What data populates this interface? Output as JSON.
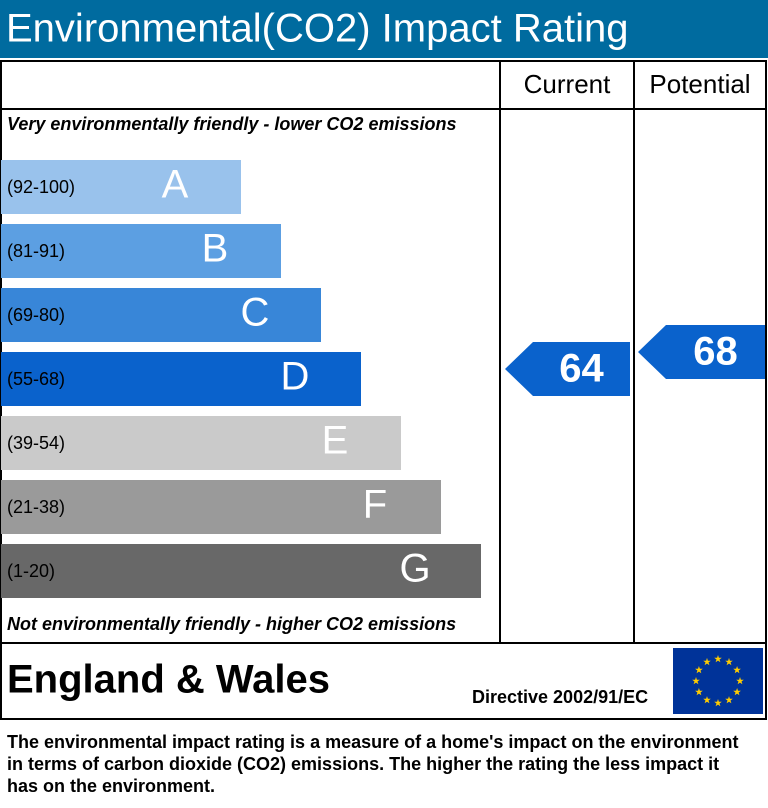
{
  "header": {
    "title": "Environmental(CO2) Impact Rating"
  },
  "columns": {
    "current": "Current",
    "potential": "Potential"
  },
  "top_note": "Very environmentally friendly - lower CO2 emissions",
  "bottom_note": "Not environmentally friendly - higher CO2 emissions",
  "bands": [
    {
      "range": "(92-100)",
      "letter": "A",
      "color": "#99c2ec"
    },
    {
      "range": "(81-91)",
      "letter": "B",
      "color": "#5c9fe2"
    },
    {
      "range": "(69-80)",
      "letter": "C",
      "color": "#3886d8"
    },
    {
      "range": "(55-68)",
      "letter": "D",
      "color": "#0a62cc"
    },
    {
      "range": "(39-54)",
      "letter": "E",
      "color": "#cacaca"
    },
    {
      "range": "(21-38)",
      "letter": "F",
      "color": "#9a9a9a"
    },
    {
      "range": "(1-20)",
      "letter": "G",
      "color": "#686868"
    }
  ],
  "current": {
    "value": 64
  },
  "potential": {
    "value": 68
  },
  "region": "England & Wales",
  "directive": "Directive 2002/91/EC",
  "footer": "The environmental impact rating is a measure of a home's impact on the environment in terms of carbon dioxide (CO2) emissions. The higher the rating the less impact it has on the environment."
}
